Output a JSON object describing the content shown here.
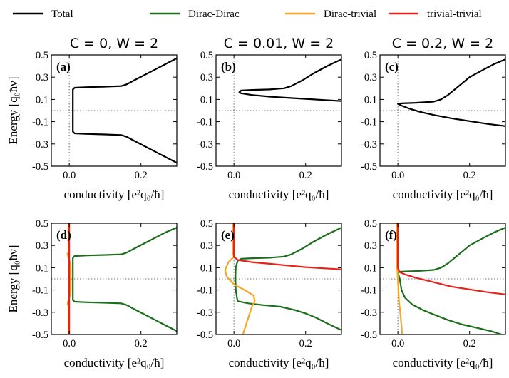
{
  "legend": [
    {
      "label": "Total",
      "color": "#000000"
    },
    {
      "label": "Dirac-Dirac",
      "color": "#1b6e1b"
    },
    {
      "label": "Dirac-trivial",
      "color": "#f5a623"
    },
    {
      "label": "trivial-trivial",
      "color": "#e8211b"
    }
  ],
  "column_titles": [
    "C = 0, W = 2",
    "C = 0.01, W = 2",
    "C = 0.2, W = 2"
  ],
  "ylabel": "Energy [q₀ħν]",
  "xlabel": "conductivity [e²q₀/ħ]",
  "y_ticks": [
    "0.5",
    "0.3",
    "0.1",
    "-0.1",
    "-0.3",
    "-0.5"
  ],
  "x_ticks": [
    "0.0",
    "0.2"
  ],
  "chart_data": [
    {
      "type": "line",
      "panel": "(a)",
      "title": "C = 0, W = 2",
      "xlim": [
        -0.05,
        0.3
      ],
      "ylim": [
        -0.5,
        0.5
      ],
      "series": [
        {
          "name": "Total",
          "color": "#000000",
          "segments": [
            [
              [
                0.3,
                0.47
              ],
              [
                0.27,
                0.42
              ],
              [
                0.24,
                0.37
              ],
              [
                0.21,
                0.32
              ],
              [
                0.18,
                0.27
              ],
              [
                0.16,
                0.235
              ],
              [
                0.145,
                0.22
              ],
              [
                0.1,
                0.215
              ],
              [
                0.05,
                0.21
              ],
              [
                0.015,
                0.205
              ],
              [
                0.01,
                0.19
              ],
              [
                0.01,
                -0.19
              ],
              [
                0.015,
                -0.205
              ],
              [
                0.05,
                -0.21
              ],
              [
                0.1,
                -0.215
              ],
              [
                0.145,
                -0.22
              ],
              [
                0.16,
                -0.235
              ],
              [
                0.18,
                -0.27
              ],
              [
                0.21,
                -0.32
              ],
              [
                0.24,
                -0.37
              ],
              [
                0.27,
                -0.42
              ],
              [
                0.3,
                -0.47
              ]
            ]
          ]
        }
      ]
    },
    {
      "type": "line",
      "panel": "(b)",
      "title": "C = 0.01, W = 2",
      "xlim": [
        -0.05,
        0.3
      ],
      "ylim": [
        -0.5,
        0.5
      ],
      "series": [
        {
          "name": "Total",
          "color": "#000000",
          "segments": [
            [
              [
                0.3,
                0.46
              ],
              [
                0.26,
                0.4
              ],
              [
                0.22,
                0.33
              ],
              [
                0.19,
                0.27
              ],
              [
                0.16,
                0.22
              ],
              [
                0.14,
                0.2
              ],
              [
                0.1,
                0.19
              ],
              [
                0.05,
                0.185
              ],
              [
                0.02,
                0.18
              ],
              [
                0.015,
                0.165
              ],
              [
                0.02,
                0.155
              ],
              [
                0.05,
                0.14
              ],
              [
                0.1,
                0.125
              ],
              [
                0.15,
                0.115
              ],
              [
                0.2,
                0.105
              ],
              [
                0.25,
                0.095
              ],
              [
                0.3,
                0.085
              ]
            ]
          ]
        }
      ]
    },
    {
      "type": "line",
      "panel": "(c)",
      "title": "C = 0.2, W = 2",
      "xlim": [
        -0.05,
        0.3
      ],
      "ylim": [
        -0.5,
        0.5
      ],
      "series": [
        {
          "name": "Total",
          "color": "#000000",
          "segments": [
            [
              [
                0.3,
                0.46
              ],
              [
                0.27,
                0.42
              ],
              [
                0.24,
                0.37
              ],
              [
                0.2,
                0.3
              ],
              [
                0.17,
                0.22
              ],
              [
                0.14,
                0.14
              ],
              [
                0.12,
                0.1
              ],
              [
                0.1,
                0.08
              ],
              [
                0.05,
                0.07
              ],
              [
                0.01,
                0.065
              ],
              [
                0.0,
                0.06
              ],
              [
                0.01,
                0.045
              ],
              [
                0.03,
                0.02
              ],
              [
                0.06,
                -0.01
              ],
              [
                0.1,
                -0.04
              ],
              [
                0.15,
                -0.07
              ],
              [
                0.2,
                -0.095
              ],
              [
                0.25,
                -0.12
              ],
              [
                0.3,
                -0.14
              ]
            ]
          ]
        }
      ]
    },
    {
      "type": "line",
      "panel": "(d)",
      "xlim": [
        -0.05,
        0.3
      ],
      "ylim": [
        -0.5,
        0.5
      ],
      "series": [
        {
          "name": "Dirac-Dirac",
          "color": "#1b6e1b",
          "segments": [
            [
              [
                0.3,
                0.46
              ],
              [
                0.27,
                0.42
              ],
              [
                0.24,
                0.37
              ],
              [
                0.21,
                0.32
              ],
              [
                0.18,
                0.27
              ],
              [
                0.16,
                0.235
              ],
              [
                0.145,
                0.22
              ],
              [
                0.1,
                0.215
              ],
              [
                0.05,
                0.21
              ],
              [
                0.015,
                0.205
              ],
              [
                0.01,
                0.19
              ],
              [
                0.01,
                -0.19
              ],
              [
                0.015,
                -0.205
              ],
              [
                0.05,
                -0.21
              ],
              [
                0.1,
                -0.215
              ],
              [
                0.145,
                -0.22
              ],
              [
                0.16,
                -0.235
              ],
              [
                0.18,
                -0.27
              ],
              [
                0.21,
                -0.32
              ],
              [
                0.24,
                -0.37
              ],
              [
                0.27,
                -0.42
              ],
              [
                0.3,
                -0.47
              ]
            ]
          ]
        },
        {
          "name": "Dirac-trivial",
          "color": "#f5a623",
          "segments": [
            [
              [
                -0.002,
                0.5
              ],
              [
                -0.002,
                0.24
              ],
              [
                -0.005,
                0.225
              ],
              [
                -0.003,
                0.2
              ],
              [
                0.002,
                0.15
              ],
              [
                0.004,
                0.1
              ],
              [
                0.004,
                -0.1
              ],
              [
                0.002,
                -0.15
              ],
              [
                -0.003,
                -0.2
              ],
              [
                -0.005,
                -0.225
              ],
              [
                -0.002,
                -0.24
              ],
              [
                -0.002,
                -0.5
              ]
            ]
          ]
        },
        {
          "name": "trivial-trivial",
          "color": "#e8211b",
          "segments": [
            [
              [
                0.0,
                0.5
              ],
              [
                0.0,
                -0.5
              ]
            ]
          ]
        }
      ]
    },
    {
      "type": "line",
      "panel": "(e)",
      "xlim": [
        -0.05,
        0.3
      ],
      "ylim": [
        -0.5,
        0.5
      ],
      "series": [
        {
          "name": "Dirac-Dirac",
          "color": "#1b6e1b",
          "segments": [
            [
              [
                0.3,
                0.46
              ],
              [
                0.26,
                0.4
              ],
              [
                0.22,
                0.33
              ],
              [
                0.19,
                0.27
              ],
              [
                0.16,
                0.22
              ],
              [
                0.14,
                0.2
              ],
              [
                0.1,
                0.19
              ],
              [
                0.05,
                0.185
              ],
              [
                0.02,
                0.18
              ],
              [
                0.01,
                0.16
              ],
              [
                0.005,
                0.1
              ],
              [
                0.004,
                0.0
              ],
              [
                0.005,
                -0.1
              ],
              [
                0.01,
                -0.2
              ],
              [
                0.04,
                -0.22
              ],
              [
                0.08,
                -0.235
              ],
              [
                0.13,
                -0.25
              ],
              [
                0.17,
                -0.28
              ],
              [
                0.2,
                -0.31
              ],
              [
                0.23,
                -0.35
              ],
              [
                0.26,
                -0.4
              ],
              [
                0.3,
                -0.46
              ]
            ]
          ]
        },
        {
          "name": "Dirac-trivial",
          "color": "#f5a623",
          "segments": [
            [
              [
                -0.002,
                0.5
              ],
              [
                -0.002,
                0.22
              ],
              [
                0.0,
                0.2
              ],
              [
                -0.015,
                0.15
              ],
              [
                -0.025,
                0.08
              ],
              [
                -0.02,
                0.02
              ],
              [
                0.0,
                -0.05
              ],
              [
                0.03,
                -0.1
              ],
              [
                0.055,
                -0.15
              ],
              [
                0.058,
                -0.2
              ],
              [
                0.05,
                -0.25
              ],
              [
                0.04,
                -0.35
              ],
              [
                0.03,
                -0.45
              ],
              [
                0.025,
                -0.5
              ]
            ]
          ]
        },
        {
          "name": "trivial-trivial",
          "color": "#e8211b",
          "segments": [
            [
              [
                0.0,
                0.5
              ],
              [
                0.0,
                0.2
              ],
              [
                0.01,
                0.17
              ],
              [
                0.05,
                0.15
              ],
              [
                0.1,
                0.135
              ],
              [
                0.15,
                0.12
              ],
              [
                0.2,
                0.105
              ],
              [
                0.25,
                0.095
              ],
              [
                0.3,
                0.085
              ]
            ]
          ]
        }
      ]
    },
    {
      "type": "line",
      "panel": "(f)",
      "xlim": [
        -0.05,
        0.3
      ],
      "ylim": [
        -0.5,
        0.5
      ],
      "series": [
        {
          "name": "Dirac-Dirac",
          "color": "#1b6e1b",
          "segments": [
            [
              [
                0.3,
                0.46
              ],
              [
                0.27,
                0.42
              ],
              [
                0.24,
                0.37
              ],
              [
                0.2,
                0.3
              ],
              [
                0.17,
                0.22
              ],
              [
                0.14,
                0.14
              ],
              [
                0.12,
                0.1
              ],
              [
                0.1,
                0.08
              ],
              [
                0.05,
                0.07
              ],
              [
                0.01,
                0.065
              ],
              [
                0.0,
                0.06
              ]
            ],
            [
              [
                0.0,
                0.06
              ],
              [
                0.005,
                0.0
              ],
              [
                0.01,
                -0.1
              ],
              [
                0.02,
                -0.17
              ],
              [
                0.04,
                -0.23
              ],
              [
                0.07,
                -0.28
              ],
              [
                0.1,
                -0.32
              ],
              [
                0.14,
                -0.37
              ],
              [
                0.18,
                -0.41
              ],
              [
                0.22,
                -0.44
              ],
              [
                0.26,
                -0.47
              ],
              [
                0.29,
                -0.5
              ]
            ]
          ]
        },
        {
          "name": "Dirac-trivial",
          "color": "#f5a623",
          "segments": [
            [
              [
                -0.002,
                0.5
              ],
              [
                -0.002,
                0.1
              ],
              [
                0.0,
                0.0
              ],
              [
                0.003,
                -0.2
              ],
              [
                0.008,
                -0.35
              ],
              [
                0.012,
                -0.5
              ]
            ]
          ]
        },
        {
          "name": "trivial-trivial",
          "color": "#e8211b",
          "segments": [
            [
              [
                0.0,
                0.5
              ],
              [
                0.0,
                0.1
              ],
              [
                0.005,
                0.06
              ],
              [
                0.02,
                0.04
              ],
              [
                0.05,
                0.01
              ],
              [
                0.1,
                -0.03
              ],
              [
                0.15,
                -0.07
              ],
              [
                0.2,
                -0.095
              ],
              [
                0.25,
                -0.12
              ],
              [
                0.3,
                -0.14
              ]
            ]
          ]
        }
      ]
    }
  ]
}
